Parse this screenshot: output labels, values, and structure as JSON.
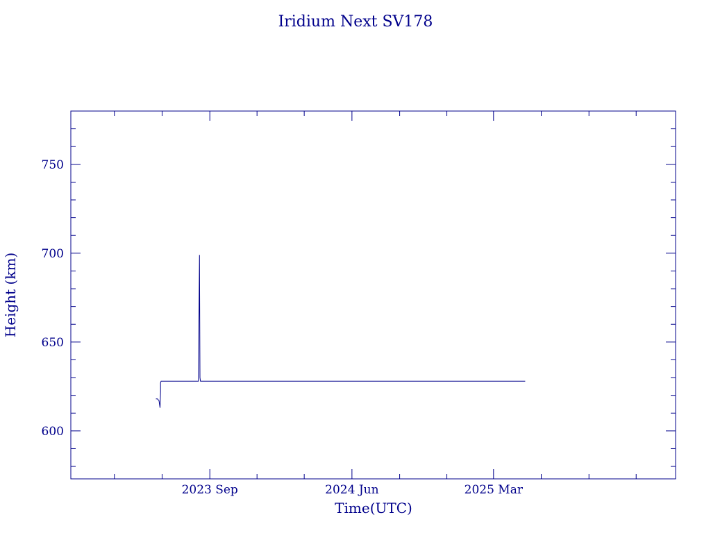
{
  "chart_data": {
    "type": "line",
    "title": "Iridium Next SV178",
    "xlabel": "Time(UTC)",
    "ylabel": "Height (km)",
    "x_ticks": [
      "2023 Sep",
      "2024 Jun",
      "2025 Mar"
    ],
    "y_ticks": [
      600,
      650,
      700,
      750
    ],
    "xlim": [
      "2022-12-07",
      "2026-02-15"
    ],
    "ylim": [
      573,
      780
    ],
    "grid": false,
    "colors": {
      "axes": "#00008b",
      "series": "#00008b"
    },
    "series": [
      {
        "x": [
          "2023-05-20",
          "2023-05-23",
          "2023-05-26",
          "2023-05-28",
          "2023-05-29",
          "2023-05-29",
          "2023-05-30",
          "2023-06-15",
          "2023-07-15",
          "2023-08-10",
          "2023-08-12",
          "2023-08-13",
          "2023-08-14",
          "2023-08-16",
          "2023-08-17",
          "2023-09-15",
          "2023-10-15",
          "2023-11-15",
          "2023-12-15",
          "2024-01-15",
          "2024-02-15",
          "2024-03-15",
          "2024-04-15",
          "2024-05-15",
          "2024-06-15",
          "2024-07-15",
          "2024-08-15",
          "2024-09-15",
          "2024-10-15",
          "2024-11-15",
          "2024-12-15",
          "2025-01-15",
          "2025-02-15",
          "2025-03-15",
          "2025-04-15",
          "2025-05-01"
        ],
        "y": [
          618,
          618,
          617,
          613,
          622,
          627,
          628,
          628,
          628,
          628,
          699,
          630,
          628,
          628,
          628,
          628,
          628,
          628,
          628,
          628,
          628,
          628,
          628,
          628,
          628,
          628,
          628,
          628,
          628,
          628,
          628,
          628,
          628,
          628,
          628,
          628
        ]
      }
    ]
  }
}
